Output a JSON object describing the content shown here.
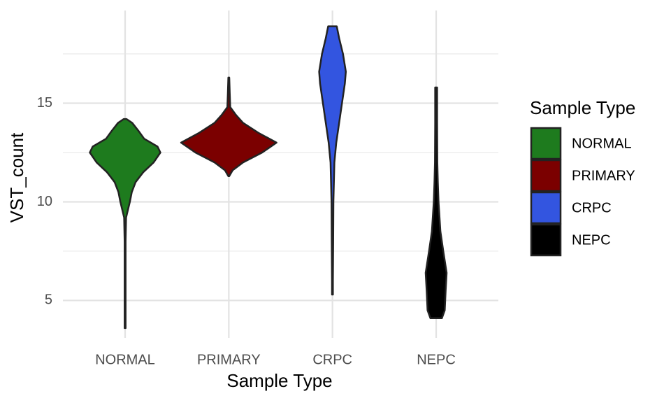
{
  "chart_data": {
    "type": "violin",
    "x_label": "Sample Type",
    "y_label": "VST_count",
    "legend_title": "Sample Type",
    "legend_position": "right",
    "categories": [
      "NORMAL",
      "PRIMARY",
      "CRPC",
      "NEPC"
    ],
    "ylim": [
      3.1,
      19.7
    ],
    "yticks": [
      5,
      10,
      15
    ],
    "yminor": [
      7.5,
      12.5,
      17.5
    ],
    "grid": true,
    "outline_color": "#222222",
    "series": [
      {
        "name": "NORMAL",
        "color": "#1e7b1e",
        "y": [
          3.6,
          5,
          8,
          9.2,
          9.5,
          10,
          10.5,
          11,
          11.5,
          12,
          12.5,
          12.8,
          13.2,
          13.6,
          14,
          14.2
        ],
        "density": [
          0.01,
          0.01,
          0.01,
          0.02,
          0.05,
          0.1,
          0.14,
          0.22,
          0.38,
          0.6,
          0.74,
          0.68,
          0.4,
          0.28,
          0.15,
          0.03
        ]
      },
      {
        "name": "PRIMARY",
        "color": "#7b0000",
        "y": [
          11.3,
          11.6,
          12,
          12.5,
          13,
          13.5,
          14,
          14.4,
          14.8,
          15.5,
          16.3
        ],
        "density": [
          0.01,
          0.08,
          0.3,
          0.7,
          1.0,
          0.62,
          0.3,
          0.15,
          0.03,
          0.02,
          0.01
        ]
      },
      {
        "name": "CRPC",
        "color": "#3355e0",
        "y": [
          5.3,
          6,
          8,
          10,
          12,
          13,
          14,
          15,
          16,
          16.6,
          17.5,
          18.3,
          18.9
        ],
        "density": [
          0.01,
          0.01,
          0.015,
          0.02,
          0.04,
          0.08,
          0.14,
          0.2,
          0.26,
          0.28,
          0.22,
          0.14,
          0.09
        ]
      },
      {
        "name": "NEPC",
        "color": "#000000",
        "y": [
          4.1,
          4.5,
          5.5,
          6.4,
          7.5,
          8.5,
          10,
          11,
          12,
          14,
          15.8
        ],
        "density": [
          0.12,
          0.18,
          0.2,
          0.22,
          0.15,
          0.09,
          0.05,
          0.035,
          0.025,
          0.02,
          0.02
        ]
      }
    ]
  }
}
